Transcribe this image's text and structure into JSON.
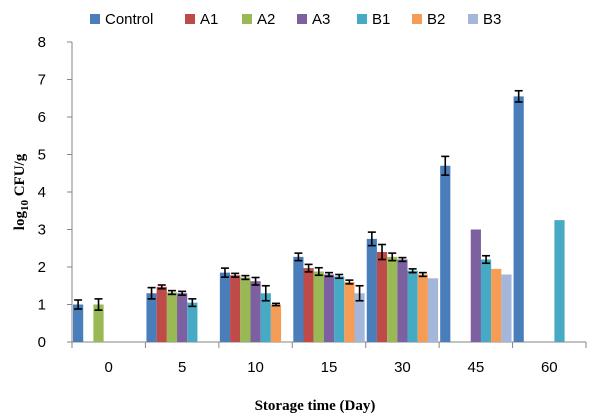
{
  "chart_data": {
    "type": "bar",
    "title": "",
    "xlabel": "Storage time (Day)",
    "ylabel": "log 10 CFU/g",
    "ylabel_main": "log",
    "ylabel_sub": "10",
    "ylabel_tail": " CFU/g",
    "ylim": [
      0,
      8
    ],
    "yticks": [
      "0",
      "1",
      "2",
      "3",
      "4",
      "5",
      "6",
      "7",
      "8"
    ],
    "categories": [
      "0",
      "5",
      "10",
      "15",
      "30",
      "45",
      "60"
    ],
    "legend_position": "top",
    "grid": false,
    "series": [
      {
        "name": "Control",
        "color": "#4a7ebb",
        "values": [
          1.0,
          1.3,
          1.85,
          2.27,
          2.75,
          4.7,
          6.55
        ],
        "errors": [
          0.12,
          0.15,
          0.12,
          0.1,
          0.18,
          0.25,
          0.15
        ]
      },
      {
        "name": "A1",
        "color": "#be4b48",
        "values": [
          null,
          1.47,
          1.78,
          1.97,
          2.4,
          null,
          null
        ],
        "errors": [
          0.05,
          0.05,
          0.05,
          0.1,
          0.2,
          null,
          null
        ]
      },
      {
        "name": "A2",
        "color": "#98b954",
        "values": [
          1.0,
          1.32,
          1.72,
          1.88,
          2.27,
          null,
          null
        ],
        "errors": [
          0.15,
          0.05,
          0.05,
          0.1,
          0.1,
          null,
          null
        ]
      },
      {
        "name": "A3",
        "color": "#7d60a0",
        "values": [
          null,
          1.3,
          1.62,
          1.8,
          2.2,
          3.0,
          null
        ],
        "errors": [
          null,
          0.05,
          0.1,
          0.05,
          0.05,
          null,
          null
        ]
      },
      {
        "name": "B1",
        "color": "#46aac4",
        "values": [
          null,
          1.05,
          1.3,
          1.75,
          1.9,
          2.2,
          3.25
        ],
        "errors": [
          null,
          0.1,
          0.2,
          0.05,
          0.05,
          0.1,
          null
        ]
      },
      {
        "name": "B2",
        "color": "#f59d56",
        "values": [
          null,
          null,
          1.0,
          1.6,
          1.8,
          1.95,
          null
        ],
        "errors": [
          null,
          null,
          0.03,
          0.05,
          0.05,
          null,
          null
        ]
      },
      {
        "name": "B3",
        "color": "#a5b6db",
        "values": [
          null,
          null,
          null,
          1.3,
          1.7,
          1.8,
          null
        ],
        "errors": [
          null,
          null,
          null,
          0.2,
          null,
          null,
          null
        ]
      }
    ]
  }
}
